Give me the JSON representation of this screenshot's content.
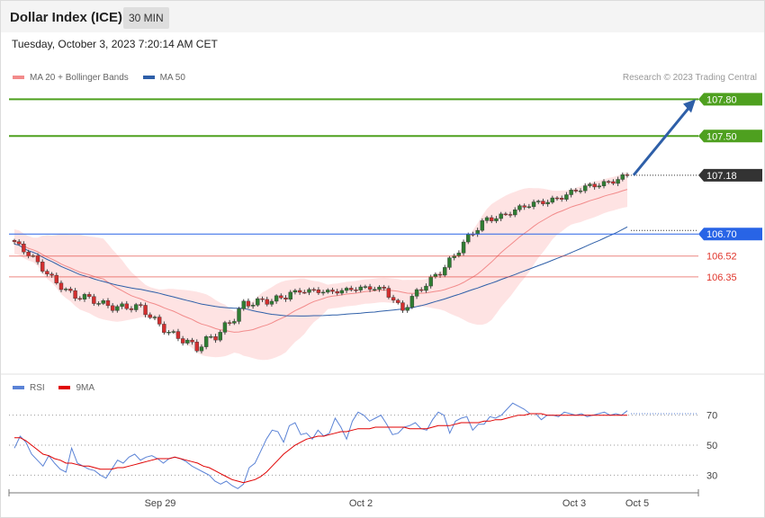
{
  "header": {
    "title": "Dollar Index (ICE)",
    "timeframe": "30 MIN"
  },
  "datetime": "Tuesday, October 3, 2023 7:20:14 AM CET",
  "legend": {
    "items": [
      {
        "label": "MA 20 + Bollinger Bands",
        "color": "#f28b8b"
      },
      {
        "label": "MA 50",
        "color": "#2e5fa8"
      }
    ],
    "copyright": "Research © 2023 Trading Central"
  },
  "rsi_legend": {
    "items": [
      {
        "label": "RSI",
        "color": "#5b83d6"
      },
      {
        "label": "9MA",
        "color": "#e00000"
      }
    ]
  },
  "chart_data": [
    {
      "type": "candlestick",
      "ylim": [
        105.6,
        107.95
      ],
      "current_price": 107.18,
      "levels": [
        {
          "value": 107.8,
          "label": "107.80",
          "color": "#4ea01f",
          "kind": "resistance"
        },
        {
          "value": 107.5,
          "label": "107.50",
          "color": "#4ea01f",
          "kind": "resistance"
        },
        {
          "value": 107.18,
          "label": "107.18",
          "color": "#333333",
          "kind": "last"
        },
        {
          "value": 106.7,
          "label": "106.70",
          "color": "#2864e6",
          "kind": "pivot"
        },
        {
          "value": 106.52,
          "label": "106.52",
          "color": "#e0352b",
          "kind": "support"
        },
        {
          "value": 106.35,
          "label": "106.35",
          "color": "#e0352b",
          "kind": "support"
        }
      ],
      "forecast_arrow": {
        "from": 107.18,
        "to": 107.8
      },
      "series_segments": [
        {
          "start": 106.66,
          "end": 106.18,
          "n": 14,
          "amp": 0.025
        },
        {
          "start": 106.18,
          "end": 106.08,
          "n": 14,
          "amp": 0.03
        },
        {
          "start": 106.08,
          "end": 105.75,
          "n": 12,
          "amp": 0.03
        },
        {
          "start": 105.75,
          "end": 106.1,
          "n": 10,
          "amp": 0.04
        },
        {
          "start": 106.1,
          "end": 106.22,
          "n": 10,
          "amp": 0.03
        },
        {
          "start": 106.22,
          "end": 106.26,
          "n": 20,
          "amp": 0.015
        },
        {
          "start": 106.26,
          "end": 106.08,
          "n": 4,
          "amp": 0.02
        },
        {
          "start": 106.08,
          "end": 106.82,
          "n": 18,
          "amp": 0.03
        },
        {
          "start": 106.82,
          "end": 107.18,
          "n": 30,
          "amp": 0.02
        }
      ]
    },
    {
      "type": "line",
      "title": "RSI",
      "ylim": [
        20,
        80
      ],
      "y_ticks": [
        70,
        50,
        30
      ],
      "x_ticks": [
        "Sep 29",
        "Oct 2",
        "Oct 3",
        "Oct 5"
      ],
      "series": [
        {
          "name": "RSI",
          "color": "#5b83d6",
          "values": [
            48,
            56,
            52,
            44,
            40,
            36,
            43,
            38,
            34,
            32,
            48,
            38,
            36,
            34,
            33,
            30,
            28,
            34,
            40,
            38,
            42,
            44,
            40,
            42,
            43,
            41,
            38,
            41,
            42,
            41,
            39,
            36,
            34,
            32,
            30,
            26,
            24,
            26,
            23,
            21,
            24,
            35,
            38,
            46,
            54,
            60,
            59,
            52,
            63,
            65,
            57,
            58,
            54,
            60,
            56,
            58,
            68,
            62,
            54,
            66,
            72,
            70,
            66,
            68,
            70,
            64,
            57,
            58,
            62,
            63,
            65,
            61,
            60,
            67,
            72,
            70,
            58,
            66,
            68,
            69,
            60,
            64,
            64,
            69,
            68,
            70,
            74,
            78,
            76,
            74,
            71,
            71,
            67,
            70,
            70,
            69,
            72,
            71,
            70,
            71,
            69,
            70,
            71,
            72,
            70,
            71,
            70,
            73
          ]
        },
        {
          "name": "9MA",
          "color": "#e00000",
          "values": [
            55,
            55,
            53,
            50,
            47,
            44,
            43,
            41,
            40,
            38,
            38,
            37,
            36,
            36,
            35,
            34,
            34,
            34,
            35,
            35,
            36,
            37,
            38,
            39,
            40,
            41,
            41,
            41,
            42,
            41,
            40,
            39,
            38,
            36,
            35,
            33,
            31,
            29,
            27,
            26,
            25,
            26,
            27,
            29,
            32,
            36,
            40,
            44,
            47,
            50,
            52,
            54,
            55,
            56,
            56,
            57,
            58,
            59,
            59,
            60,
            61,
            61,
            61,
            62,
            62,
            62,
            62,
            62,
            62,
            61,
            61,
            61,
            61,
            62,
            63,
            63,
            63,
            64,
            65,
            65,
            65,
            65,
            66,
            66,
            67,
            67,
            68,
            69,
            70,
            70,
            71,
            71,
            71,
            70,
            70,
            70,
            70,
            70,
            70,
            70,
            70,
            70,
            70,
            70,
            70,
            70,
            70,
            70
          ]
        }
      ]
    }
  ]
}
